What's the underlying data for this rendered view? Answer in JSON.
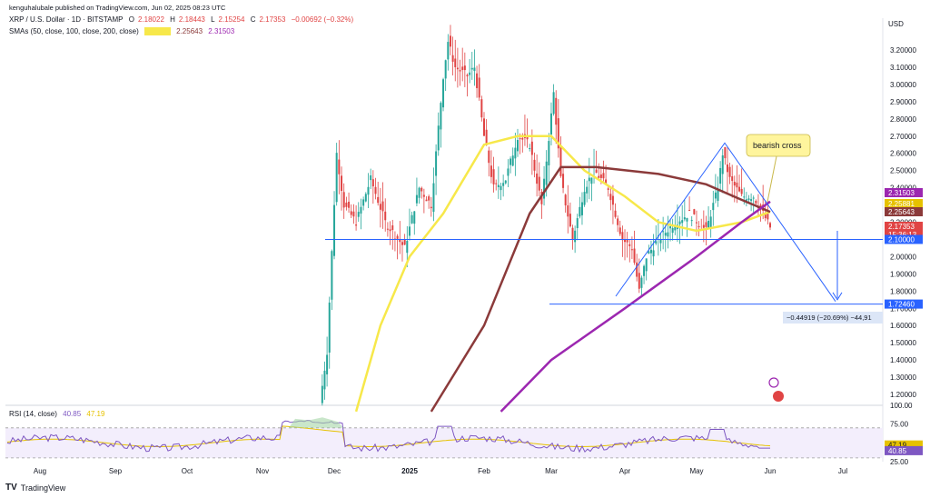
{
  "header": {
    "publisher": "kenguhalubale published on TradingView.com, Jun 02, 2025 08:23 UTC",
    "symbol": "XRP / U.S. Dollar · 1D · BITSTAMP",
    "ohlc": {
      "o_label": "O",
      "o": "2.18022",
      "h_label": "H",
      "h": "2.18443",
      "l_label": "L",
      "l": "2.15254",
      "c_label": "C",
      "c": "2.17353",
      "chg": "−0.00692 (−0.32%)"
    },
    "sma_label": "SMAs (50, close, 100, close, 200, close)",
    "sma_values": [
      {
        "value": "2.25881",
        "color": "#f7e84a"
      },
      {
        "value": "2.25643",
        "color": "#8b3a3a"
      },
      {
        "value": "2.31503",
        "color": "#9c27b0"
      }
    ],
    "rsi_label": "RSI (14, close)",
    "rsi_values": [
      {
        "value": "40.85",
        "color": "#7e57c2"
      },
      {
        "value": "47.19",
        "color": "#e6c200"
      }
    ]
  },
  "currency": "USD",
  "footer": {
    "logo": "TV",
    "brand": "TradingView"
  },
  "annotations": {
    "bearish_cross": "bearish cross",
    "measure": "−0.44919 (−20.69%) −44,91"
  },
  "price_tags": [
    {
      "value": "2.31503",
      "color": "#9c27b0"
    },
    {
      "value": "2.25881",
      "color": "#e6c200"
    },
    {
      "value": "2.25643",
      "color": "#8b3a3a"
    },
    {
      "value": "2.17353",
      "color": "#e04444"
    },
    {
      "value": "15:36:13",
      "color": "#e04444"
    },
    {
      "value": "2.10000",
      "color": "#2962ff"
    },
    {
      "value": "1.72460",
      "color": "#2962ff"
    }
  ],
  "rsi_tags": [
    {
      "value": "47.19",
      "color": "#e6c200"
    },
    {
      "value": "40.85",
      "color": "#7e57c2"
    }
  ],
  "colors": {
    "up": "#26a69a",
    "down": "#e04444",
    "sma50": "#f7e84a",
    "sma100": "#8b3a3a",
    "sma200": "#9c27b0",
    "line": "#2962ff",
    "rsi": "#7e57c2",
    "rsi_ma": "#e6c200"
  },
  "chart_data": {
    "type": "line",
    "price_axis": {
      "min": 1.1,
      "max": 3.3,
      "ticks": [
        "3.20000",
        "3.10000",
        "3.00000",
        "2.90000",
        "2.80000",
        "2.70000",
        "2.60000",
        "2.50000",
        "2.40000",
        "2.30000",
        "2.20000",
        "2.10000",
        "2.00000",
        "1.90000",
        "1.80000",
        "1.70000",
        "1.60000",
        "1.50000",
        "1.40000",
        "1.30000",
        "1.20000"
      ]
    },
    "time_axis": {
      "labels": [
        "Aug",
        "Sep",
        "Oct",
        "Nov",
        "Dec",
        "2025",
        "Feb",
        "Mar",
        "Apr",
        "May",
        "Jun",
        "Jul"
      ]
    },
    "close": [
      {
        "x": "Nov 25",
        "y": 1.15
      },
      {
        "x": "Nov 28",
        "y": 1.45
      },
      {
        "x": "Dec 02",
        "y": 2.6
      },
      {
        "x": "Dec 05",
        "y": 2.3
      },
      {
        "x": "Dec 10",
        "y": 2.2
      },
      {
        "x": "Dec 16",
        "y": 2.45
      },
      {
        "x": "Dec 22",
        "y": 2.2
      },
      {
        "x": "Dec 30",
        "y": 2.05
      },
      {
        "x": "Jan 05",
        "y": 2.4
      },
      {
        "x": "Jan 10",
        "y": 2.3
      },
      {
        "x": "Jan 15",
        "y": 3.05
      },
      {
        "x": "Jan 17",
        "y": 3.25
      },
      {
        "x": "Jan 20",
        "y": 3.1
      },
      {
        "x": "Jan 25",
        "y": 3.05
      },
      {
        "x": "Jan 28",
        "y": 3.1
      },
      {
        "x": "Feb 01",
        "y": 2.7
      },
      {
        "x": "Feb 05",
        "y": 2.4
      },
      {
        "x": "Feb 10",
        "y": 2.45
      },
      {
        "x": "Feb 15",
        "y": 2.7
      },
      {
        "x": "Feb 20",
        "y": 2.65
      },
      {
        "x": "Feb 25",
        "y": 2.3
      },
      {
        "x": "Mar 02",
        "y": 2.95
      },
      {
        "x": "Mar 05",
        "y": 2.45
      },
      {
        "x": "Mar 10",
        "y": 2.1
      },
      {
        "x": "Mar 15",
        "y": 2.4
      },
      {
        "x": "Mar 19",
        "y": 2.5
      },
      {
        "x": "Mar 25",
        "y": 2.4
      },
      {
        "x": "Mar 31",
        "y": 2.1
      },
      {
        "x": "Apr 04",
        "y": 2.05
      },
      {
        "x": "Apr 07",
        "y": 1.8
      },
      {
        "x": "Apr 10",
        "y": 2.0
      },
      {
        "x": "Apr 15",
        "y": 2.1
      },
      {
        "x": "Apr 22",
        "y": 2.2
      },
      {
        "x": "Apr 28",
        "y": 2.25
      },
      {
        "x": "May 05",
        "y": 2.15
      },
      {
        "x": "May 10",
        "y": 2.4
      },
      {
        "x": "May 12",
        "y": 2.6
      },
      {
        "x": "May 15",
        "y": 2.45
      },
      {
        "x": "May 20",
        "y": 2.35
      },
      {
        "x": "May 25",
        "y": 2.35
      },
      {
        "x": "May 29",
        "y": 2.25
      },
      {
        "x": "Jun 01",
        "y": 2.17
      }
    ],
    "sma50": [
      {
        "x": "Dec 10",
        "y": 1.1
      },
      {
        "x": "Dec 20",
        "y": 1.6
      },
      {
        "x": "Jan 01",
        "y": 2.0
      },
      {
        "x": "Jan 15",
        "y": 2.25
      },
      {
        "x": "Feb 01",
        "y": 2.65
      },
      {
        "x": "Feb 15",
        "y": 2.7
      },
      {
        "x": "Mar 01",
        "y": 2.7
      },
      {
        "x": "Mar 15",
        "y": 2.5
      },
      {
        "x": "Apr 01",
        "y": 2.35
      },
      {
        "x": "Apr 15",
        "y": 2.2
      },
      {
        "x": "May 01",
        "y": 2.15
      },
      {
        "x": "May 20",
        "y": 2.2
      },
      {
        "x": "Jun 01",
        "y": 2.26
      }
    ],
    "sma100": [
      {
        "x": "Jan 10",
        "y": 1.1
      },
      {
        "x": "Feb 01",
        "y": 1.6
      },
      {
        "x": "Feb 20",
        "y": 2.25
      },
      {
        "x": "Mar 05",
        "y": 2.52
      },
      {
        "x": "Mar 20",
        "y": 2.52
      },
      {
        "x": "Apr 15",
        "y": 2.48
      },
      {
        "x": "May 05",
        "y": 2.42
      },
      {
        "x": "May 20",
        "y": 2.33
      },
      {
        "x": "Jun 01",
        "y": 2.26
      }
    ],
    "sma200": [
      {
        "x": "Feb 08",
        "y": 1.1
      },
      {
        "x": "Mar 01",
        "y": 1.4
      },
      {
        "x": "Apr 01",
        "y": 1.7
      },
      {
        "x": "May 01",
        "y": 2.0
      },
      {
        "x": "May 20",
        "y": 2.2
      },
      {
        "x": "Jun 01",
        "y": 2.32
      }
    ],
    "rsi": {
      "axis": {
        "min": 25,
        "max": 100,
        "ticks": [
          "100.00",
          "75.00",
          "25.00"
        ]
      },
      "levels": [
        70,
        30
      ],
      "last": 40.85,
      "ma_last": 47.19
    }
  }
}
